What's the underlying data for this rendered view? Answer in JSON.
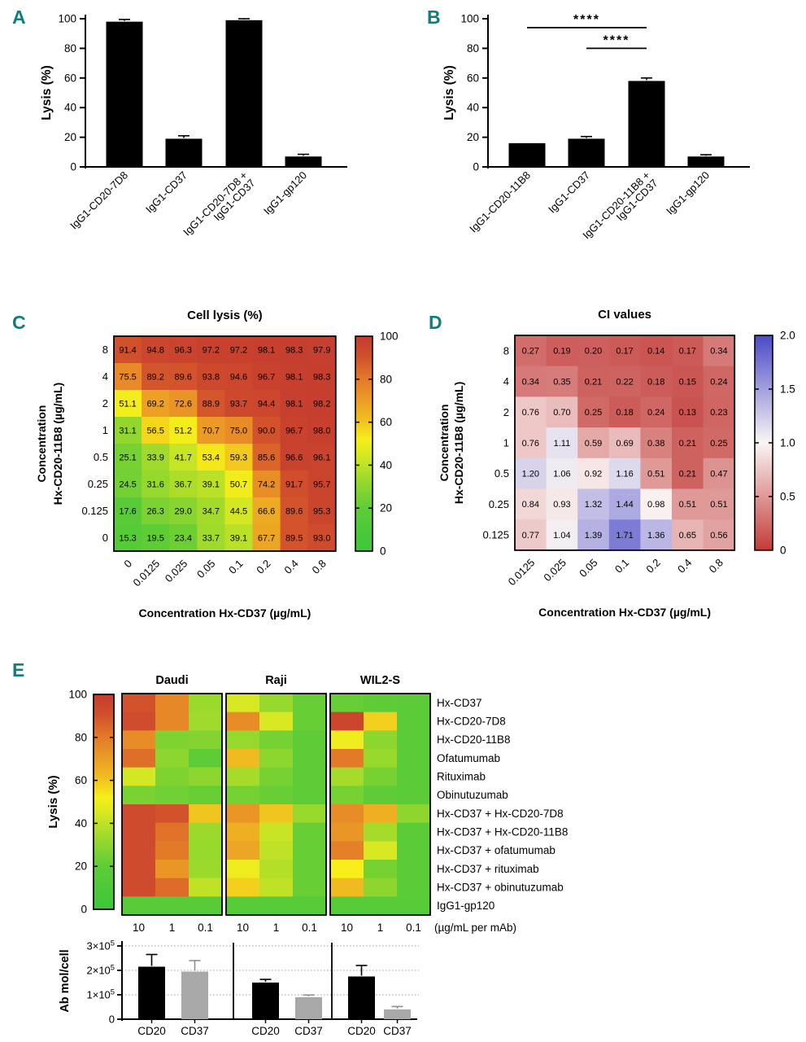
{
  "panel_letters": {
    "a": "A",
    "b": "B",
    "c": "C",
    "d": "D",
    "e": "E"
  },
  "colors": {
    "letter": "#117D7D",
    "black": "#000000",
    "gray": "#A8A8A8",
    "gridline": "#999999",
    "lysis_stops": [
      [
        0,
        "#3CC63C"
      ],
      [
        20,
        "#5ECC37"
      ],
      [
        35,
        "#A5DB2B"
      ],
      [
        45,
        "#D8E822"
      ],
      [
        52,
        "#F7EE1A"
      ],
      [
        62,
        "#F0BB20"
      ],
      [
        72,
        "#EA9626"
      ],
      [
        82,
        "#E07329"
      ],
      [
        90,
        "#D2522C"
      ],
      [
        100,
        "#C43A2E"
      ]
    ],
    "ci_stops": [
      [
        0,
        "#C23B38"
      ],
      [
        1,
        "#FAF5F4"
      ],
      [
        2,
        "#4A4AC8"
      ]
    ]
  },
  "chart_data": [
    {
      "panel": "A",
      "type": "bar",
      "ylabel": "Lysis (%)",
      "ylim": [
        0,
        100
      ],
      "yticks": [
        0,
        20,
        40,
        60,
        80,
        100
      ],
      "categories": [
        [
          "IgG1-CD20-7D8"
        ],
        [
          "IgG1-CD37"
        ],
        [
          "IgG1-CD20-7D8 +",
          "IgG1-CD37"
        ],
        [
          "IgG1-gp120"
        ]
      ],
      "values": [
        98,
        19,
        99,
        7
      ],
      "errors": [
        1.5,
        2,
        1,
        1.5
      ],
      "significance": []
    },
    {
      "panel": "B",
      "type": "bar",
      "ylabel": "Lysis (%)",
      "ylim": [
        0,
        100
      ],
      "yticks": [
        0,
        20,
        40,
        60,
        80,
        100
      ],
      "categories": [
        [
          "IgG1-CD20-11B8"
        ],
        [
          "IgG1-CD37"
        ],
        [
          "IgG1-CD20-11B8 +",
          "IgG1-CD37"
        ],
        [
          "IgG1-gp120"
        ]
      ],
      "values": [
        16,
        19,
        58,
        7
      ],
      "errors": [
        0,
        1.5,
        2,
        1.2
      ],
      "significance": [
        {
          "from": 0,
          "to": 2,
          "value": 94,
          "label": "****"
        },
        {
          "from": 1,
          "to": 2,
          "value": 80,
          "label": "****"
        }
      ]
    },
    {
      "panel": "C",
      "type": "heatmap",
      "scale": "lysis",
      "title": "Cell lysis (%)",
      "xlabel": "Concentration Hx-CD37 (µg/mL)",
      "ylabel_lines": [
        "Concentration",
        "Hx-CD20-11B8 (µg/mL)"
      ],
      "rows": [
        "8",
        "4",
        "2",
        "1",
        "0.5",
        "0.25",
        "0.125",
        "0"
      ],
      "cols": [
        "0",
        "0.0125",
        "0.025",
        "0.05",
        "0.1",
        "0.2",
        "0.4",
        "0.8"
      ],
      "values": [
        [
          "91.4",
          "94.8",
          "96.3",
          "97.2",
          "97.2",
          "98.1",
          "98.3",
          "97.9"
        ],
        [
          "75.5",
          "89.2",
          "89.6",
          "93.8",
          "94.6",
          "96.7",
          "98.1",
          "98.3"
        ],
        [
          "51.1",
          "69.2",
          "72.6",
          "88.9",
          "93.7",
          "94.4",
          "98.1",
          "98.2"
        ],
        [
          "31.1",
          "56.5",
          "51.2",
          "70.7",
          "75.0",
          "90.0",
          "96.7",
          "98.0"
        ],
        [
          "25.1",
          "33.9",
          "41.7",
          "53.4",
          "59.3",
          "85.6",
          "96.6",
          "96.1"
        ],
        [
          "24.5",
          "31.6",
          "36.7",
          "39.1",
          "50.7",
          "74.2",
          "91.7",
          "95.7"
        ],
        [
          "17.6",
          "26.3",
          "29.0",
          "34.7",
          "44.5",
          "66.6",
          "89.6",
          "95.3"
        ],
        [
          "15.3",
          "19.5",
          "23.4",
          "33.7",
          "39.1",
          "67.7",
          "89.5",
          "93.0"
        ]
      ],
      "colorbar": {
        "min": 0,
        "max": 100,
        "ticks": [
          {
            "v": 0,
            "label": "0"
          },
          {
            "v": 20,
            "label": "20"
          },
          {
            "v": 40,
            "label": "40"
          },
          {
            "v": 60,
            "label": "60"
          },
          {
            "v": 80,
            "label": "80"
          },
          {
            "v": 100,
            "label": "100"
          }
        ]
      }
    },
    {
      "panel": "D",
      "type": "heatmap",
      "scale": "ci",
      "title": "CI values",
      "xlabel": "Concentration Hx-CD37 (µg/mL)",
      "ylabel_lines": [
        "Concentration",
        "Hx-CD20-11B8 (µg/mL)"
      ],
      "rows": [
        "8",
        "4",
        "2",
        "1",
        "0.5",
        "0.25",
        "0.125"
      ],
      "cols": [
        "0.0125",
        "0.025",
        "0.05",
        "0.1",
        "0.2",
        "0.4",
        "0.8"
      ],
      "values": [
        [
          "0.27",
          "0.19",
          "0.20",
          "0.17",
          "0.14",
          "0.17",
          "0.34"
        ],
        [
          "0.34",
          "0.35",
          "0.21",
          "0.22",
          "0.18",
          "0.15",
          "0.24"
        ],
        [
          "0.76",
          "0.70",
          "0.25",
          "0.18",
          "0.24",
          "0.13",
          "0.23"
        ],
        [
          "0.76",
          "1.11",
          "0.59",
          "0.69",
          "0.38",
          "0.21",
          "0.25"
        ],
        [
          "1.20",
          "1.06",
          "0.92",
          "1.16",
          "0.51",
          "0.21",
          "0.47"
        ],
        [
          "0.84",
          "0.93",
          "1.32",
          "1.44",
          "0.98",
          "0.51",
          "0.51"
        ],
        [
          "0.77",
          "1.04",
          "1.39",
          "1.71",
          "1.36",
          "0.65",
          "0.56"
        ]
      ],
      "colorbar": {
        "min": 0,
        "max": 2,
        "ticks": [
          {
            "v": 0,
            "label": "0"
          },
          {
            "v": 0.5,
            "label": "0.5"
          },
          {
            "v": 1,
            "label": "1.0"
          },
          {
            "v": 1.5,
            "label": "1.5"
          },
          {
            "v": 2,
            "label": "2.0"
          }
        ]
      }
    },
    {
      "panel": "E",
      "type": "panel-e",
      "groups": [
        "Daudi",
        "Raji",
        "WIL2-S"
      ],
      "row_labels": [
        "Hx-CD37",
        "Hx-CD20-7D8",
        "Hx-CD20-11B8",
        "Ofatumumab",
        "Rituximab",
        "Obinutuzumab",
        "Hx-CD37 + Hx-CD20-7D8",
        "Hx-CD37 + Hx-CD20-11B8",
        "Hx-CD37 + ofatumumab",
        "Hx-CD37 + rituximab",
        "Hx-CD37 + obinutuzumab",
        "IgG1-gp120"
      ],
      "col_labels": [
        "10",
        "1",
        "0.1"
      ],
      "unit_label": "(µg/mL per mAb)",
      "colorbar": {
        "label": "Lysis (%)",
        "min": 0,
        "max": 100,
        "ticks": [
          {
            "v": 0,
            "label": "0"
          },
          {
            "v": 20,
            "label": "20"
          },
          {
            "v": 40,
            "label": "40"
          },
          {
            "v": 60,
            "label": "60"
          },
          {
            "v": 80,
            "label": "80"
          },
          {
            "v": 100,
            "label": "100"
          }
        ]
      },
      "lysis": {
        "Daudi": [
          [
            90,
            76,
            33
          ],
          [
            92,
            76,
            34
          ],
          [
            75,
            27,
            28
          ],
          [
            83,
            30,
            20
          ],
          [
            44,
            27,
            30
          ],
          [
            26,
            24,
            22
          ],
          [
            93,
            90,
            60
          ],
          [
            93,
            82,
            33
          ],
          [
            93,
            80,
            32
          ],
          [
            93,
            72,
            33
          ],
          [
            93,
            84,
            40
          ],
          [
            17,
            17,
            17
          ]
        ],
        "Raji": [
          [
            45,
            32,
            22
          ],
          [
            75,
            45,
            22
          ],
          [
            32,
            25,
            20
          ],
          [
            62,
            30,
            20
          ],
          [
            35,
            25,
            20
          ],
          [
            25,
            22,
            20
          ],
          [
            72,
            60,
            32
          ],
          [
            65,
            42,
            22
          ],
          [
            68,
            40,
            22
          ],
          [
            50,
            38,
            22
          ],
          [
            58,
            40,
            22
          ],
          [
            16,
            16,
            16
          ]
        ],
        "WIL2-S": [
          [
            22,
            20,
            18
          ],
          [
            95,
            58,
            18
          ],
          [
            50,
            30,
            18
          ],
          [
            80,
            32,
            18
          ],
          [
            35,
            25,
            18
          ],
          [
            25,
            20,
            18
          ],
          [
            75,
            65,
            30
          ],
          [
            72,
            35,
            18
          ],
          [
            78,
            45,
            18
          ],
          [
            52,
            25,
            18
          ],
          [
            62,
            30,
            18
          ],
          [
            16,
            16,
            16
          ]
        ]
      },
      "bar_chart": {
        "ylabel": "Ab mol/cell",
        "ymax": 300000,
        "yticks": [
          {
            "v": 0,
            "label": "0"
          },
          {
            "v": 100000,
            "label": "1×10^5"
          },
          {
            "v": 200000,
            "label": "2×10^5"
          },
          {
            "v": 300000,
            "label": "3×10^5"
          }
        ],
        "categories": [
          "CD20",
          "CD37"
        ],
        "series": [
          {
            "group": "Daudi",
            "values": [
              215000,
              195000
            ],
            "errors": [
              50000,
              45000
            ]
          },
          {
            "group": "Raji",
            "values": [
              150000,
              90000
            ],
            "errors": [
              13000,
              9000
            ]
          },
          {
            "group": "WIL2-S",
            "values": [
              175000,
              40000
            ],
            "errors": [
              45000,
              12000
            ]
          }
        ]
      }
    }
  ]
}
